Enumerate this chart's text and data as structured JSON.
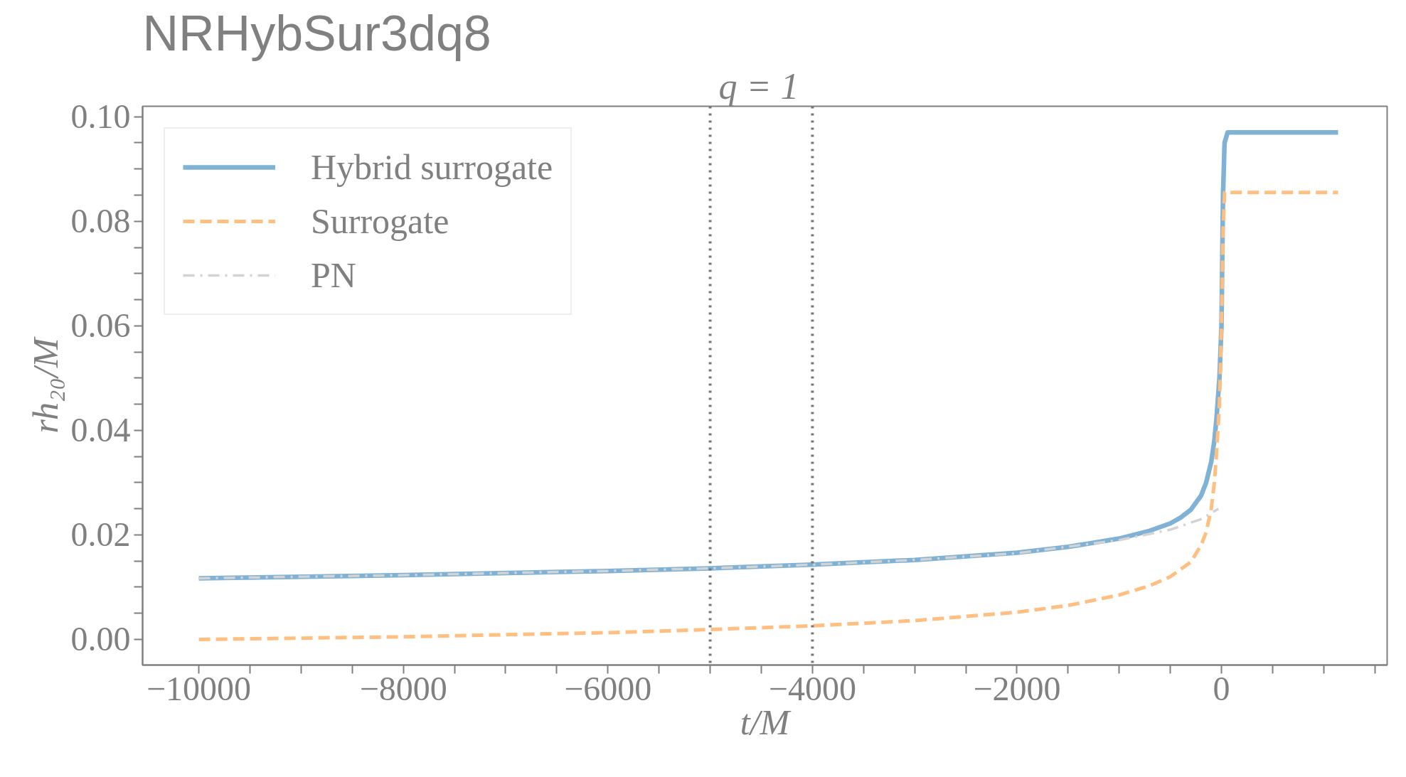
{
  "chart_data": {
    "type": "line",
    "title": "NRHybSur3dq8",
    "xlabel": "t/M",
    "ylabel": "rh₂₀/M",
    "xlim": [
      -10550,
      1620
    ],
    "ylim": [
      -0.0049,
      0.102
    ],
    "xticks": [
      -10000,
      {
        "value": -9500,
        "label": null
      },
      {
        "value": -9000,
        "label": null
      },
      {
        "value": -8500,
        "label": null
      },
      -8000,
      {
        "value": -7500,
        "label": null
      },
      {
        "value": -7000,
        "label": null
      },
      {
        "value": -6500,
        "label": null
      },
      -6000,
      {
        "value": -5500,
        "label": null
      },
      {
        "value": -5000,
        "label": null
      },
      {
        "value": -4500,
        "label": null
      },
      -4000,
      {
        "value": -3500,
        "label": null
      },
      {
        "value": -3000,
        "label": null
      },
      {
        "value": -2500,
        "label": null
      },
      -2000,
      {
        "value": -1500,
        "label": null
      },
      {
        "value": -1000,
        "label": null
      },
      {
        "value": -500,
        "label": null
      },
      0,
      {
        "value": 500,
        "label": null
      },
      {
        "value": 1000,
        "label": null
      },
      {
        "value": 1500,
        "label": null
      }
    ],
    "yticks": [
      {
        "value": 0.0,
        "label": "0.00"
      },
      {
        "value": 0.005,
        "label": null
      },
      {
        "value": 0.01,
        "label": null
      },
      {
        "value": 0.015,
        "label": null
      },
      {
        "value": 0.02,
        "label": "0.02"
      },
      {
        "value": 0.025,
        "label": null
      },
      {
        "value": 0.03,
        "label": null
      },
      {
        "value": 0.035,
        "label": null
      },
      {
        "value": 0.04,
        "label": "0.04"
      },
      {
        "value": 0.045,
        "label": null
      },
      {
        "value": 0.05,
        "label": null
      },
      {
        "value": 0.055,
        "label": null
      },
      {
        "value": 0.06,
        "label": "0.06"
      },
      {
        "value": 0.065,
        "label": null
      },
      {
        "value": 0.07,
        "label": null
      },
      {
        "value": 0.075,
        "label": null
      },
      {
        "value": 0.08,
        "label": "0.08"
      },
      {
        "value": 0.085,
        "label": null
      },
      {
        "value": 0.09,
        "label": null
      },
      {
        "value": 0.095,
        "label": null
      },
      {
        "value": 0.1,
        "label": "0.10"
      }
    ],
    "grid": false,
    "legend": "top left",
    "ref_lines": [
      {
        "axis": "x",
        "value": -5000,
        "color": "#777777",
        "line_style": "dotted"
      },
      {
        "axis": "x",
        "value": -4000,
        "color": "#777777",
        "line_style": "dotted"
      }
    ],
    "annotations": [
      "q = 1"
    ],
    "series": [
      {
        "name": "Hybrid surrogate",
        "color": "#7fb2d5",
        "line_style": "solid",
        "x": [
          -10000,
          -8000,
          -6000,
          -5000,
          -4000,
          -3000,
          -2000,
          -1500,
          -1000,
          -700,
          -500,
          -400,
          -300,
          -200,
          -150,
          -100,
          -70,
          -50,
          -20,
          0,
          15,
          30,
          60,
          1140
        ],
        "values": [
          0.0117,
          0.0123,
          0.0131,
          0.0136,
          0.0143,
          0.0152,
          0.0166,
          0.0177,
          0.0193,
          0.0208,
          0.0222,
          0.0233,
          0.0248,
          0.0275,
          0.03,
          0.034,
          0.038,
          0.042,
          0.05,
          0.06,
          0.085,
          0.095,
          0.097,
          0.097
        ]
      },
      {
        "name": "Surrogate",
        "color": "#ffbf80",
        "line_style": "dashed",
        "x": [
          -10000,
          -8000,
          -6000,
          -5000,
          -4000,
          -3000,
          -2000,
          -1500,
          -1000,
          -700,
          -500,
          -300,
          -200,
          -150,
          -100,
          -70,
          -50,
          -20,
          0,
          15,
          30,
          1140
        ],
        "values": [
          0.0,
          0.0005,
          0.0013,
          0.0019,
          0.0026,
          0.0036,
          0.0052,
          0.0065,
          0.0085,
          0.0103,
          0.012,
          0.0148,
          0.018,
          0.0205,
          0.025,
          0.03,
          0.035,
          0.045,
          0.06,
          0.078,
          0.0855,
          0.0855
        ]
      },
      {
        "name": "PN",
        "color": "#d3d3d3",
        "line_style": "dashdot",
        "x": [
          -10000,
          -8000,
          -6000,
          -5000,
          -4000,
          -3000,
          -2000,
          -1000,
          -500,
          -200,
          -30
        ],
        "values": [
          0.0117,
          0.0123,
          0.0131,
          0.0136,
          0.0143,
          0.0152,
          0.0165,
          0.019,
          0.021,
          0.023,
          0.025
        ]
      }
    ]
  }
}
